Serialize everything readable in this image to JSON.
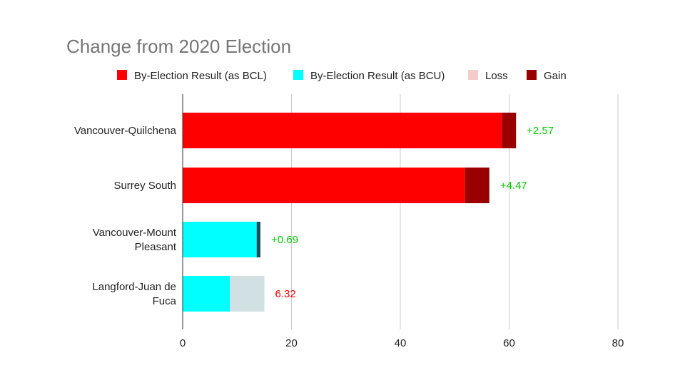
{
  "chart_data": {
    "type": "bar",
    "orientation": "horizontal",
    "stacked": true,
    "title": "Change from 2020 Election",
    "xlabel": "",
    "ylabel": "",
    "xlim": [
      0,
      80
    ],
    "xticks": [
      0,
      20,
      40,
      60,
      80
    ],
    "grid": true,
    "legend_position": "top",
    "legend": [
      {
        "label": "By-Election Result (as BCL)",
        "color": "#ff0000"
      },
      {
        "label": "By-Election Result (as BCU)",
        "color": "#00ffff"
      },
      {
        "label": "Loss",
        "color": "#f4cccc"
      },
      {
        "label": "Gain",
        "color": "#990000"
      }
    ],
    "categories": [
      [
        "Vancouver-Quilchena"
      ],
      [
        "Surrey South"
      ],
      [
        "Vancouver-Mount",
        "Pleasant"
      ],
      [
        "Langford-Juan de",
        "Fuca"
      ]
    ],
    "rows": [
      {
        "base": 58.7,
        "base_color": "#ff0000",
        "change": 2.57,
        "change_color": "#990000",
        "label": "+2.57",
        "label_color": "#00cc00"
      },
      {
        "base": 51.9,
        "base_color": "#ff0000",
        "change": 4.47,
        "change_color": "#990000",
        "label": "+4.47",
        "label_color": "#00cc00"
      },
      {
        "base": 13.6,
        "base_color": "#00ffff",
        "change": 0.69,
        "change_color": "#134f5c",
        "label": "+0.69",
        "label_color": "#00cc00"
      },
      {
        "base": 8.7,
        "base_color": "#00ffff",
        "change": 6.32,
        "change_color": "#d0e0e3",
        "label": "6.32",
        "label_color": "#ff0000"
      }
    ]
  }
}
